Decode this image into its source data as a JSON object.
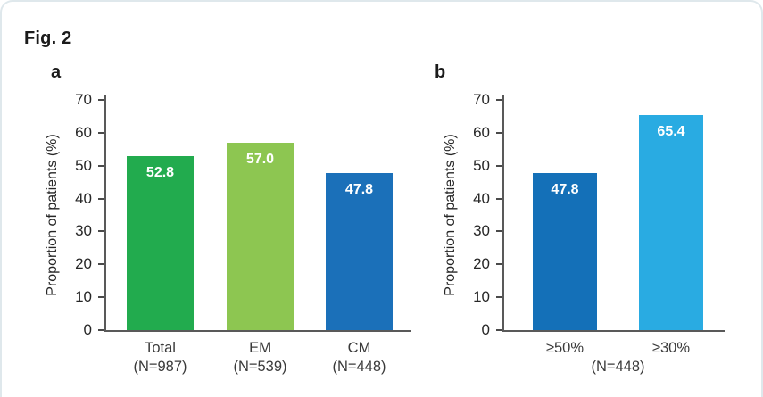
{
  "figure": {
    "title": "Fig. 2"
  },
  "colors": {
    "green": "#22ab4e",
    "light_green": "#8dc651",
    "blue": "#1b70b9",
    "dark_blue": "#1470b8",
    "cyan": "#29abe2",
    "axis": "#595959",
    "card_border": "#dfe8ec"
  },
  "chart_data": [
    {
      "type": "bar",
      "panel_label": "a",
      "ylabel": "Proportion of patients (%)",
      "ylim": [
        0,
        70
      ],
      "ytick_step": 10,
      "grid": false,
      "categories": [
        "Total",
        "EM",
        "CM"
      ],
      "category_sublabels": [
        "(N=987)",
        "(N=539)",
        "(N=448)"
      ],
      "values": [
        52.8,
        57.0,
        47.8
      ],
      "value_labels": [
        "52.8",
        "57.0",
        "47.8"
      ],
      "bar_colors": [
        "#22ab4e",
        "#8dc651",
        "#1b70b9"
      ]
    },
    {
      "type": "bar",
      "panel_label": "b",
      "ylabel": "Proportion of patients (%)",
      "ylim": [
        0,
        70
      ],
      "ytick_step": 10,
      "grid": false,
      "categories": [
        "≥50%",
        "≥30%"
      ],
      "category_sublabels": [
        "",
        ""
      ],
      "group_label": "(N=448)",
      "values": [
        47.8,
        65.4
      ],
      "value_labels": [
        "47.8",
        "65.4"
      ],
      "bar_colors": [
        "#1470b8",
        "#29abe2"
      ]
    }
  ]
}
